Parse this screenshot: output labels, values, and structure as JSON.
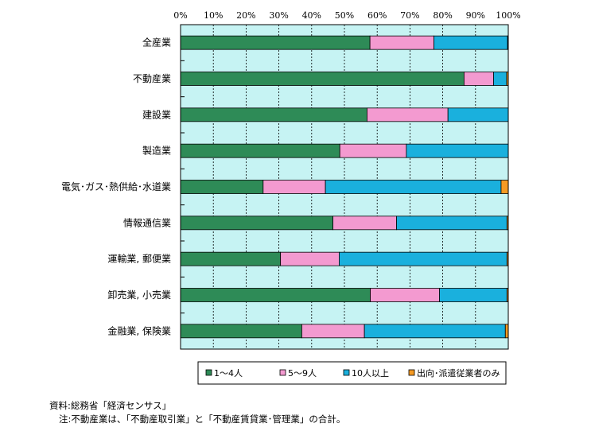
{
  "chart_data": {
    "type": "bar",
    "orientation": "horizontal",
    "stacked": true,
    "percent_stacked": true,
    "categories": [
      "全産業",
      "不動産業",
      "建設業",
      "製造業",
      "電気･ガス･熱供給･水道業",
      "情報通信業",
      "運輸業, 郵便業",
      "卸売業, 小売業",
      "金融業, 保険業"
    ],
    "series": [
      {
        "name": "1～4人",
        "color": "#2e8b57",
        "values": [
          57.8,
          86.5,
          56.9,
          48.6,
          25.2,
          46.5,
          30.5,
          57.9,
          37.0
        ]
      },
      {
        "name": "5～9人",
        "color": "#f39ad0",
        "values": [
          19.5,
          9.0,
          24.7,
          20.3,
          19.0,
          19.4,
          17.9,
          21.1,
          19.1
        ]
      },
      {
        "name": "10人以上",
        "color": "#1ab0dd",
        "values": [
          22.5,
          4.0,
          18.4,
          31.1,
          53.6,
          33.7,
          51.2,
          20.6,
          43.0
        ]
      },
      {
        "name": "出向･派遣従業者のみ",
        "color": "#f59a23",
        "values": [
          0.2,
          0.5,
          0.0,
          0.0,
          2.2,
          0.4,
          0.4,
          0.4,
          0.9
        ]
      }
    ],
    "xlim": [
      0,
      100
    ],
    "x_ticks": [
      "0%",
      "10%",
      "20%",
      "30%",
      "40%",
      "50%",
      "60%",
      "70%",
      "80%",
      "90%",
      "100%"
    ],
    "xlabel": "",
    "ylabel": "",
    "grid": true,
    "plot_background": "#c6f3f3",
    "legend_position": "bottom"
  },
  "notes": {
    "source": "資料:総務省「経済センサス」",
    "note": "注:不動産業は、「不動産取引業」と「不動産賃貸業･管理業」の合計。"
  }
}
